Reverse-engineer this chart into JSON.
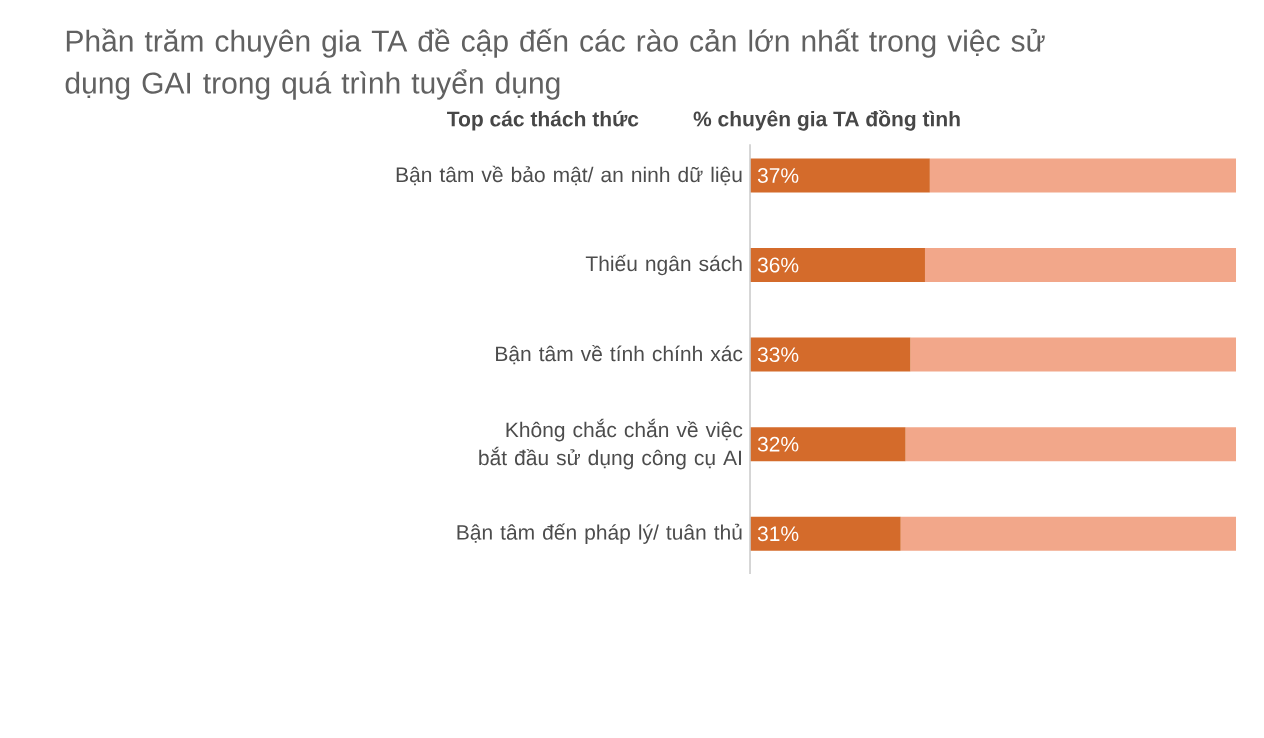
{
  "chart_data": {
    "type": "bar",
    "orientation": "horizontal",
    "stacked": true,
    "title": "Phần trăm chuyên gia TA đề cập đến các rào cản lớn nhất trong việc sử dụng GAI trong quá trình tuyển dụng",
    "ylabel": "Top các thách thức",
    "xlabel": "% chuyên gia TA đồng tình",
    "categories": [
      "Bận tâm về bảo mật/ an ninh dữ liệu",
      "Thiếu ngân sách",
      "Bận tâm về tính chính xác",
      "Không chắc chắn về việc bắt đầu sử dụng công cụ AI",
      "Bận tâm đến pháp lý/ tuân thủ"
    ],
    "series": [
      {
        "color": "#d46b2b",
        "values": [
          37,
          36,
          33,
          32,
          31
        ],
        "value_labels": [
          "37%",
          "36%",
          "33%",
          "32%",
          "31%"
        ]
      },
      {
        "color": "#f2a78a",
        "values": [
          63,
          64,
          67,
          68,
          69
        ]
      }
    ],
    "xlim": [
      0,
      100
    ],
    "tick_labels": "y"
  }
}
